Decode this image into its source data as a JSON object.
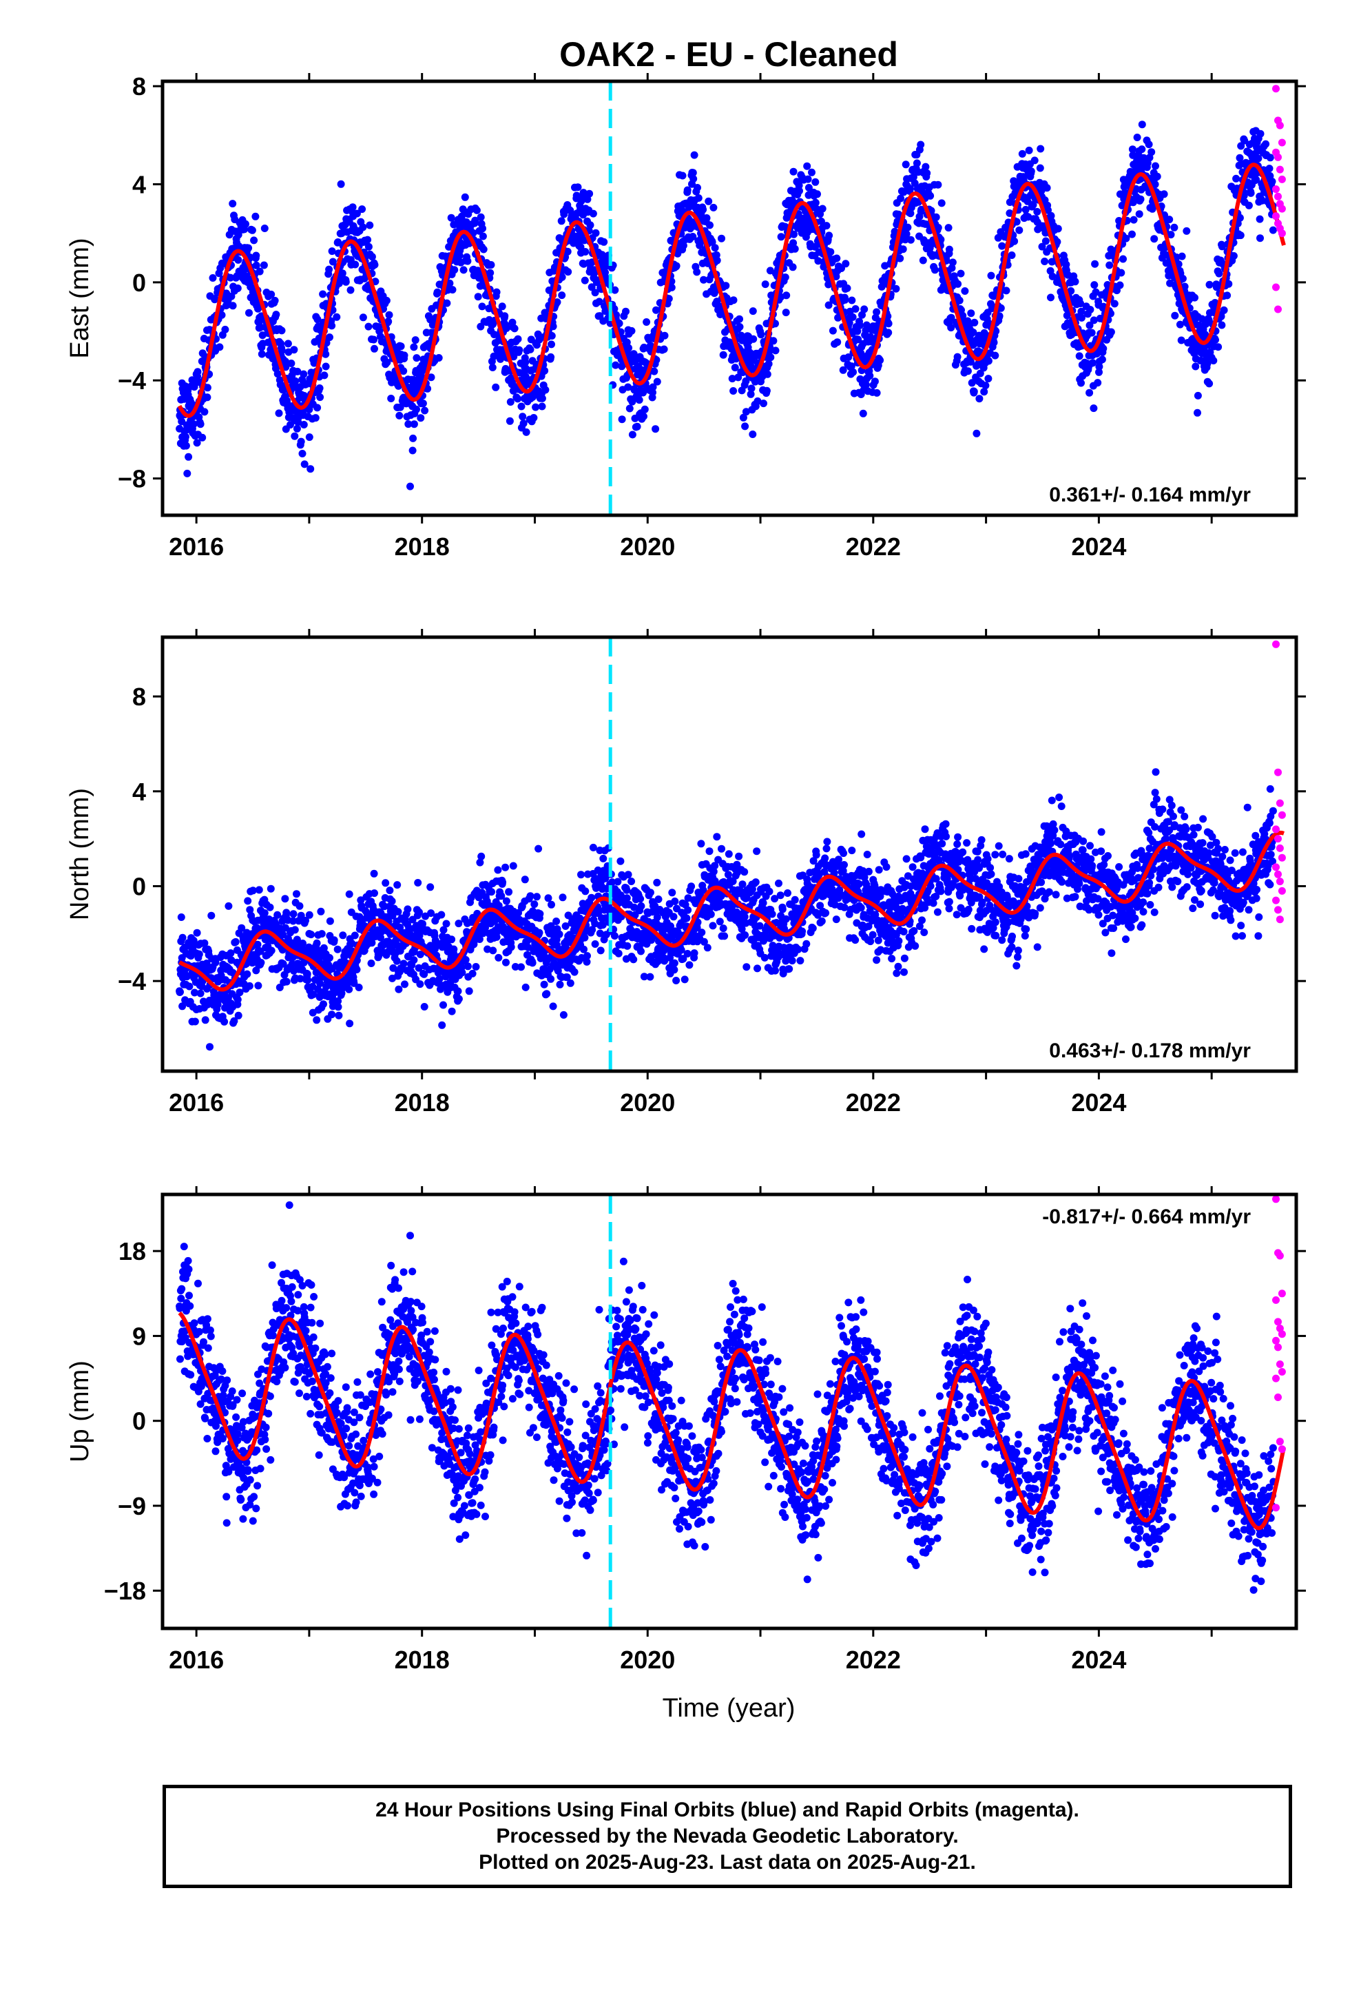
{
  "title": "OAK2  - EU - Cleaned",
  "xlabel": "Time (year)",
  "footer": {
    "line1": "24 Hour Positions Using Final Orbits (blue) and Rapid Orbits (magenta).",
    "line2": "Processed by the Nevada Geodetic Laboratory.",
    "line3": "Plotted on 2025-Aug-23. Last data on 2025-Aug-21."
  },
  "colors": {
    "final": "#0000ff",
    "rapid": "#ff00ff",
    "model": "#ff0000",
    "event": "#00e5ff",
    "frame": "#000000"
  },
  "chart_data": [
    {
      "type": "scatter",
      "name": "east",
      "ylabel": "East (mm)",
      "rate_text": "0.361+/- 0.164 mm/yr",
      "rate_position": "bottom-right",
      "xlim": [
        2015.7,
        2025.75
      ],
      "ylim": [
        -9.5,
        8.2
      ],
      "xticks": [
        "2016",
        "2018",
        "2020",
        "2022",
        "2024"
      ],
      "yticks": [
        "-8",
        "-4",
        "0",
        "4",
        "8"
      ],
      "ytick_values": [
        -8,
        -4,
        0,
        4,
        8
      ],
      "event_year": 2019.67,
      "final_range": [
        2015.85,
        2025.55
      ],
      "rapid_range": [
        2025.55,
        2025.64
      ],
      "model": {
        "rate": 0.361,
        "intercept": -2.2,
        "intercept_year": 2015.85,
        "amp_start": 3.2,
        "amp_end": 3.5,
        "phase_year": 0.15,
        "semi_amp": 0.35
      },
      "scatter_sd": 0.9,
      "rapid_values": [
        7.9,
        6.6,
        6.4,
        5.7,
        5.3,
        5.1,
        4.6,
        4.2,
        3.8,
        3.5,
        3.2,
        3.0,
        2.7,
        2.4,
        2.2,
        2.0,
        -0.2,
        -1.1
      ]
    },
    {
      "type": "scatter",
      "name": "north",
      "ylabel": "North (mm)",
      "rate_text": "0.463+/- 0.178 mm/yr",
      "rate_position": "bottom-right",
      "xlim": [
        2015.7,
        2025.75
      ],
      "ylim": [
        -7.8,
        10.5
      ],
      "xticks": [
        "2016",
        "2018",
        "2020",
        "2022",
        "2024"
      ],
      "yticks": [
        "-4",
        "0",
        "4",
        "8"
      ],
      "ytick_values": [
        -4,
        0,
        4,
        8
      ],
      "event_year": 2019.67,
      "final_range": [
        2015.85,
        2025.55
      ],
      "rapid_range": [
        2025.55,
        2025.64
      ],
      "model": {
        "rate": 0.463,
        "intercept": -3.4,
        "intercept_year": 2015.85,
        "amp_start": 1.0,
        "amp_end": 1.0,
        "phase_year": 0.42,
        "semi_amp": 0.3
      },
      "scatter_sd": 0.9,
      "rapid_values": [
        10.2,
        4.8,
        3.5,
        3.0,
        2.4,
        2.0,
        1.6,
        1.2,
        0.8,
        0.5,
        0.2,
        -0.2,
        -0.6,
        -1.0,
        -1.4
      ]
    },
    {
      "type": "scatter",
      "name": "up",
      "ylabel": "Up (mm)",
      "rate_text": "-0.817+/- 0.664 mm/yr",
      "rate_position": "top-right",
      "xlim": [
        2015.7,
        2025.75
      ],
      "ylim": [
        -22,
        24
      ],
      "xticks": [
        "2016",
        "2018",
        "2020",
        "2022",
        "2024"
      ],
      "yticks": [
        "-18",
        "-9",
        "0",
        "9",
        "18"
      ],
      "ytick_values": [
        -18,
        -9,
        0,
        9,
        18
      ],
      "event_year": 2019.67,
      "final_range": [
        2015.85,
        2025.55
      ],
      "rapid_range": [
        2025.55,
        2025.64
      ],
      "model": {
        "rate": -0.817,
        "intercept": 4.0,
        "intercept_year": 2015.85,
        "amp_start": 7.2,
        "amp_end": 7.2,
        "phase_year": 0.62,
        "semi_amp": 1.2
      },
      "scatter_sd": 3.2,
      "rapid_values": [
        23.5,
        17.8,
        17.5,
        13.5,
        12.8,
        10.5,
        9.8,
        9.2,
        8.5,
        7.8,
        6.0,
        5.2,
        4.5,
        2.5,
        -2.2,
        -3.0,
        -9.2
      ]
    }
  ]
}
